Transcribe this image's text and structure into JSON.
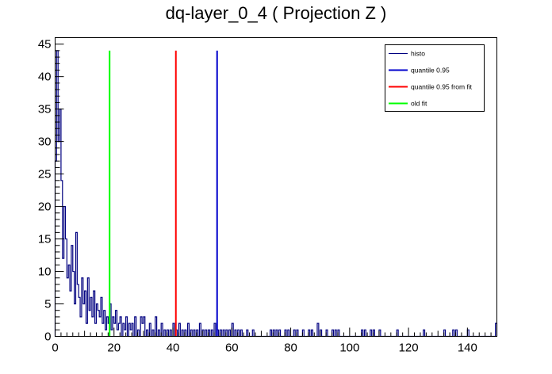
{
  "chart_data": {
    "type": "histogram",
    "title": "dq-layer_0_4 ( Projection Z )",
    "xlabel": "",
    "ylabel": "",
    "xlim": [
      0,
      150
    ],
    "ylim": [
      0,
      46
    ],
    "x_ticks": [
      0,
      20,
      40,
      60,
      80,
      100,
      120,
      140
    ],
    "y_ticks": [
      0,
      5,
      10,
      15,
      20,
      25,
      30,
      35,
      40,
      45
    ],
    "grid": false,
    "legend_position": "top-right",
    "histogram": {
      "name": "histo",
      "color": "#000080",
      "bin_width": 0.5,
      "bins": [
        {
          "x": 0.0,
          "y": 27
        },
        {
          "x": 0.5,
          "y": 44
        },
        {
          "x": 1.0,
          "y": 30
        },
        {
          "x": 1.5,
          "y": 35
        },
        {
          "x": 2.0,
          "y": 24
        },
        {
          "x": 2.5,
          "y": 12
        },
        {
          "x": 3.0,
          "y": 20
        },
        {
          "x": 3.5,
          "y": 15
        },
        {
          "x": 4.0,
          "y": 9
        },
        {
          "x": 4.5,
          "y": 11
        },
        {
          "x": 5.0,
          "y": 7
        },
        {
          "x": 5.5,
          "y": 14
        },
        {
          "x": 6.0,
          "y": 10
        },
        {
          "x": 6.5,
          "y": 5
        },
        {
          "x": 7.0,
          "y": 16
        },
        {
          "x": 7.5,
          "y": 8
        },
        {
          "x": 8.0,
          "y": 6
        },
        {
          "x": 8.5,
          "y": 3
        },
        {
          "x": 9.0,
          "y": 9
        },
        {
          "x": 9.5,
          "y": 5
        },
        {
          "x": 10.0,
          "y": 7
        },
        {
          "x": 10.5,
          "y": 2
        },
        {
          "x": 11.0,
          "y": 9
        },
        {
          "x": 11.5,
          "y": 4
        },
        {
          "x": 12.0,
          "y": 6
        },
        {
          "x": 12.5,
          "y": 3
        },
        {
          "x": 13.0,
          "y": 7
        },
        {
          "x": 13.5,
          "y": 2
        },
        {
          "x": 14.0,
          "y": 5
        },
        {
          "x": 14.5,
          "y": 4
        },
        {
          "x": 15.0,
          "y": 3
        },
        {
          "x": 15.5,
          "y": 6
        },
        {
          "x": 16.0,
          "y": 2
        },
        {
          "x": 16.5,
          "y": 4
        },
        {
          "x": 17.0,
          "y": 1
        },
        {
          "x": 17.5,
          "y": 3
        },
        {
          "x": 18.0,
          "y": 2
        },
        {
          "x": 18.5,
          "y": 5
        },
        {
          "x": 19.0,
          "y": 1
        },
        {
          "x": 19.5,
          "y": 3
        },
        {
          "x": 20.0,
          "y": 2
        },
        {
          "x": 20.5,
          "y": 4
        },
        {
          "x": 21.0,
          "y": 1
        },
        {
          "x": 21.5,
          "y": 2
        },
        {
          "x": 22.0,
          "y": 3
        },
        {
          "x": 23.0,
          "y": 2
        },
        {
          "x": 23.5,
          "y": 1
        },
        {
          "x": 24.0,
          "y": 3
        },
        {
          "x": 25.0,
          "y": 2
        },
        {
          "x": 25.5,
          "y": 1
        },
        {
          "x": 26.0,
          "y": 2
        },
        {
          "x": 27.0,
          "y": 3
        },
        {
          "x": 28.0,
          "y": 1
        },
        {
          "x": 29.0,
          "y": 3
        },
        {
          "x": 29.5,
          "y": 2
        },
        {
          "x": 30.0,
          "y": 3
        },
        {
          "x": 31.0,
          "y": 1
        },
        {
          "x": 32.0,
          "y": 2
        },
        {
          "x": 33.0,
          "y": 1
        },
        {
          "x": 34.0,
          "y": 3
        },
        {
          "x": 35.0,
          "y": 1
        },
        {
          "x": 36.0,
          "y": 2
        },
        {
          "x": 37.0,
          "y": 1
        },
        {
          "x": 38.0,
          "y": 1
        },
        {
          "x": 39.0,
          "y": 1
        },
        {
          "x": 40.0,
          "y": 2
        },
        {
          "x": 41.0,
          "y": 1
        },
        {
          "x": 42.0,
          "y": 2
        },
        {
          "x": 43.0,
          "y": 1
        },
        {
          "x": 44.0,
          "y": 1
        },
        {
          "x": 45.0,
          "y": 2
        },
        {
          "x": 46.0,
          "y": 1
        },
        {
          "x": 47.0,
          "y": 1
        },
        {
          "x": 48.0,
          "y": 1
        },
        {
          "x": 49.0,
          "y": 2
        },
        {
          "x": 50.0,
          "y": 1
        },
        {
          "x": 51.0,
          "y": 1
        },
        {
          "x": 52.0,
          "y": 1
        },
        {
          "x": 53.0,
          "y": 1
        },
        {
          "x": 54.0,
          "y": 2
        },
        {
          "x": 55.0,
          "y": 1
        },
        {
          "x": 56.0,
          "y": 1
        },
        {
          "x": 57.0,
          "y": 1
        },
        {
          "x": 58.0,
          "y": 1
        },
        {
          "x": 59.0,
          "y": 1
        },
        {
          "x": 60.0,
          "y": 2
        },
        {
          "x": 61.0,
          "y": 1
        },
        {
          "x": 62.0,
          "y": 1
        },
        {
          "x": 63.0,
          "y": 1
        },
        {
          "x": 65.0,
          "y": 1
        },
        {
          "x": 67.0,
          "y": 1
        },
        {
          "x": 73.0,
          "y": 1
        },
        {
          "x": 74.0,
          "y": 1
        },
        {
          "x": 75.0,
          "y": 1
        },
        {
          "x": 76.0,
          "y": 1
        },
        {
          "x": 78.0,
          "y": 1
        },
        {
          "x": 79.0,
          "y": 1
        },
        {
          "x": 81.0,
          "y": 1
        },
        {
          "x": 82.0,
          "y": 1
        },
        {
          "x": 84.0,
          "y": 1
        },
        {
          "x": 86.0,
          "y": 1
        },
        {
          "x": 87.0,
          "y": 1
        },
        {
          "x": 89.0,
          "y": 2
        },
        {
          "x": 90.0,
          "y": 1
        },
        {
          "x": 92.0,
          "y": 1
        },
        {
          "x": 94.0,
          "y": 1
        },
        {
          "x": 95.0,
          "y": 1
        },
        {
          "x": 96.0,
          "y": 1
        },
        {
          "x": 104.0,
          "y": 1
        },
        {
          "x": 105.0,
          "y": 1
        },
        {
          "x": 107.0,
          "y": 1
        },
        {
          "x": 108.0,
          "y": 1
        },
        {
          "x": 110.0,
          "y": 1
        },
        {
          "x": 116.0,
          "y": 1
        },
        {
          "x": 125.0,
          "y": 1
        },
        {
          "x": 132.0,
          "y": 1
        },
        {
          "x": 135.0,
          "y": 1
        },
        {
          "x": 136.0,
          "y": 1
        },
        {
          "x": 140.0,
          "y": 1
        },
        {
          "x": 149.5,
          "y": 2
        }
      ]
    },
    "vertical_lines": [
      {
        "name": "quantile 0.95",
        "x": 55,
        "y_top": 44,
        "color": "#0000cc"
      },
      {
        "name": "quantile 0.95 from fit",
        "x": 41,
        "y_top": 44,
        "color": "#ff0000"
      },
      {
        "name": "old fit",
        "x": 18.5,
        "y_top": 44,
        "color": "#00ff00"
      }
    ],
    "legend": [
      {
        "label": "histo",
        "color": "#000080"
      },
      {
        "label": "quantile 0.95",
        "color": "#0000cc"
      },
      {
        "label": "quantile 0.95 from fit",
        "color": "#ff0000"
      },
      {
        "label": "old fit",
        "color": "#00ff00"
      }
    ]
  }
}
